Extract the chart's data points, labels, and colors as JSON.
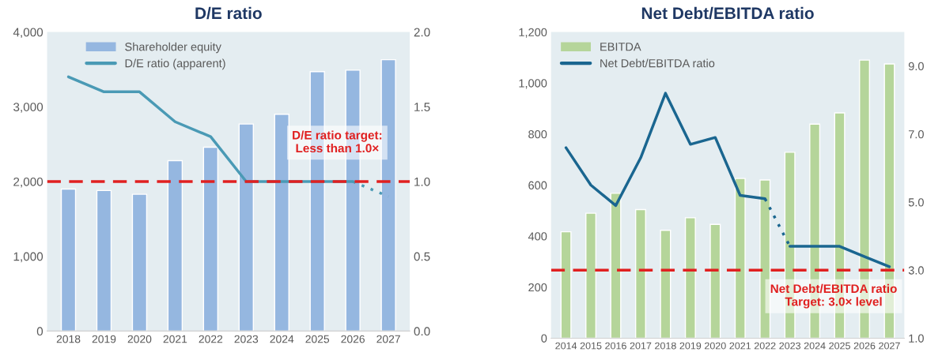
{
  "chart_data": [
    {
      "type": "bar",
      "title": "D/E ratio",
      "categories": [
        "2018",
        "2019",
        "2020",
        "2021",
        "2022",
        "2023",
        "2024",
        "2025",
        "2026",
        "2027"
      ],
      "series": [
        {
          "name": "Shareholder equity",
          "color": "#95b7e0",
          "values": [
            1900,
            1880,
            1830,
            2280,
            2460,
            2770,
            2900,
            3470,
            3490,
            3630
          ]
        },
        {
          "name": "D/E ratio (apparent)",
          "type": "line",
          "axis": "y2",
          "color": "#4a9ab5",
          "line_style": "solid",
          "values": [
            1.7,
            1.6,
            1.6,
            1.4,
            1.3,
            1.0,
            1.0,
            1.0,
            1.0,
            null
          ]
        },
        {
          "type": "line",
          "axis": "y2",
          "color": "#4a9ab5",
          "line_style": "dotted",
          "values": [
            null,
            null,
            null,
            null,
            null,
            null,
            null,
            null,
            1.0,
            0.9
          ]
        }
      ],
      "ylim": [
        0,
        4000
      ],
      "yticks": [
        0,
        {
          "value": 1000,
          "label": "1,000"
        },
        {
          "value": 2000,
          "label": "2,000"
        },
        {
          "value": 3000,
          "label": "3,000"
        },
        {
          "value": 4000,
          "label": "4,000"
        }
      ],
      "y2lim": [
        0,
        2.0
      ],
      "y2ticks": [
        {
          "value": 0,
          "label": "0.0"
        },
        0.5,
        {
          "value": 1,
          "label": "1.0"
        },
        1.5,
        {
          "value": 2,
          "label": "2.0"
        }
      ],
      "ref_lines": [
        {
          "axis": "y2",
          "value": 1.0,
          "label": "D/E ratio target:\nLess than 1.0×",
          "color": "#e02020",
          "line_style": "dashed"
        }
      ],
      "legend": "top left",
      "grid": false
    },
    {
      "type": "bar",
      "title": "Net Debt/EBITDA ratio",
      "categories": [
        "2014",
        "2015",
        "2016",
        "2017",
        "2018",
        "2019",
        "2020",
        "2021",
        "2022",
        "2023",
        "2024",
        "2025",
        "2026",
        "2027"
      ],
      "series": [
        {
          "name": "EBITDA",
          "color": "#b5d59a",
          "values": [
            417,
            490,
            568,
            504,
            423,
            472,
            446,
            626,
            620,
            729,
            839,
            883,
            1090,
            1075
          ]
        },
        {
          "name": "Net Debt/EBITDA ratio",
          "type": "line",
          "axis": "y2",
          "color": "#1a6690",
          "line_style": "solid",
          "values": [
            6.6,
            5.5,
            4.9,
            6.3,
            8.2,
            6.7,
            6.9,
            5.2,
            5.1,
            null,
            null,
            null,
            null,
            null
          ]
        },
        {
          "type": "line",
          "axis": "y2",
          "color": "#1a6690",
          "line_style": "dotted",
          "values": [
            null,
            null,
            null,
            null,
            null,
            null,
            null,
            null,
            5.1,
            3.7,
            null,
            null,
            null,
            null
          ]
        },
        {
          "type": "line",
          "axis": "y2",
          "color": "#1a6690",
          "line_style": "solid",
          "values": [
            null,
            null,
            null,
            null,
            null,
            null,
            null,
            null,
            null,
            3.7,
            3.7,
            3.7,
            3.4,
            3.1
          ]
        }
      ],
      "ylim": [
        0,
        1200
      ],
      "yticks": [
        0,
        200,
        400,
        600,
        800,
        {
          "value": 1000,
          "label": "1,000"
        },
        {
          "value": 1200,
          "label": "1,200"
        }
      ],
      "y2lim": [
        1.0,
        10.0
      ],
      "y2ticks": [
        {
          "value": 1,
          "label": "1.0"
        },
        {
          "value": 3,
          "label": "3.0"
        },
        {
          "value": 5,
          "label": "5.0"
        },
        {
          "value": 7,
          "label": "7.0"
        },
        {
          "value": 9,
          "label": "9.0"
        }
      ],
      "ref_lines": [
        {
          "axis": "y2",
          "value": 3.0,
          "label": "Net Debt/EBITDA ratio\nTarget: 3.0× level",
          "color": "#e02020",
          "line_style": "dashed"
        }
      ],
      "legend": "top left",
      "grid": false
    }
  ]
}
